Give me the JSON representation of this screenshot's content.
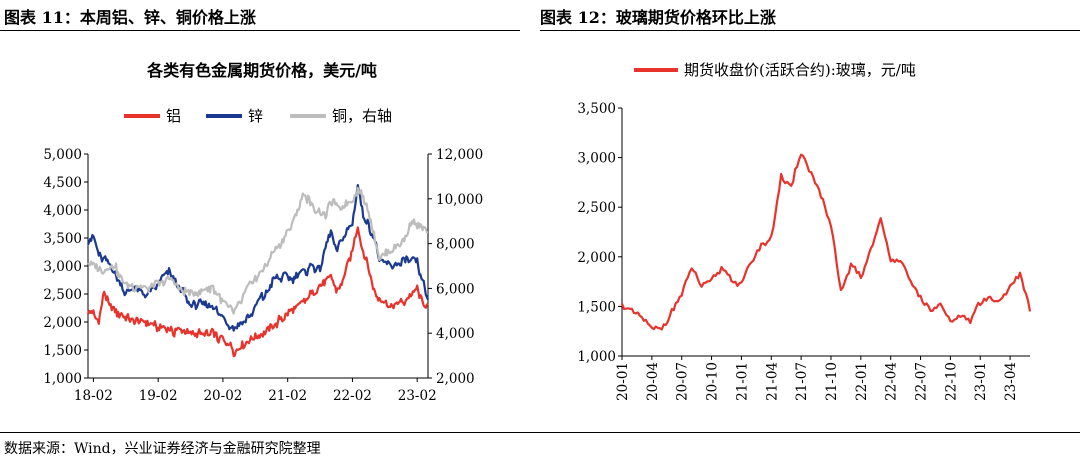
{
  "left_panel": {
    "title": "图表 11：本周铝、锌、铜价格上涨"
  },
  "right_panel": {
    "title": "图表 12：玻璃期货价格环比上涨"
  },
  "source": "数据来源：Wind，兴业证券经济与金融研究院整理",
  "chart_data": [
    {
      "type": "line",
      "title": "各类有色金属期货价格，美元/吨",
      "x_tick_labels": [
        "18-02",
        "19-02",
        "20-02",
        "21-02",
        "22-02",
        "23-02"
      ],
      "x_range": [
        "2018-01",
        "2023-04"
      ],
      "y_left": {
        "range": [
          1000,
          5000
        ],
        "ticks": [
          "1,000",
          "1,500",
          "2,000",
          "2,500",
          "3,000",
          "3,500",
          "4,000",
          "4,500",
          "5,000"
        ]
      },
      "y_right": {
        "range": [
          2000,
          12000
        ],
        "ticks": [
          "2,000",
          "4,000",
          "6,000",
          "8,000",
          "10,000",
          "12,000"
        ]
      },
      "grid": false,
      "legend_position": "top",
      "series": [
        {
          "name": "铝",
          "axis": "left",
          "color": "#e8332d",
          "x": [
            "2018-01",
            "2018-03",
            "2018-04",
            "2018-05",
            "2018-08",
            "2018-12",
            "2019-04",
            "2019-08",
            "2019-12",
            "2020-03",
            "2020-04",
            "2020-06",
            "2020-09",
            "2020-12",
            "2021-03",
            "2021-06",
            "2021-08",
            "2021-10",
            "2021-11",
            "2021-12",
            "2022-02",
            "2022-03",
            "2022-04",
            "2022-06",
            "2022-07",
            "2022-09",
            "2022-12",
            "2023-02",
            "2023-03",
            "2023-04"
          ],
          "values": [
            2200,
            2050,
            2600,
            2250,
            2100,
            1950,
            1850,
            1800,
            1800,
            1600,
            1480,
            1600,
            1750,
            2000,
            2200,
            2450,
            2650,
            2850,
            2600,
            2700,
            3300,
            3700,
            3250,
            2600,
            2400,
            2250,
            2400,
            2600,
            2350,
            2300
          ]
        },
        {
          "name": "锌",
          "axis": "left",
          "color": "#1b3a8f",
          "x": [
            "2018-01",
            "2018-02",
            "2018-03",
            "2018-05",
            "2018-08",
            "2018-10",
            "2018-12",
            "2019-04",
            "2019-08",
            "2019-12",
            "2020-03",
            "2020-04",
            "2020-06",
            "2020-09",
            "2020-12",
            "2021-03",
            "2021-06",
            "2021-08",
            "2021-10",
            "2021-11",
            "2021-12",
            "2022-02",
            "2022-03",
            "2022-04",
            "2022-06",
            "2022-07",
            "2022-09",
            "2022-12",
            "2023-02",
            "2023-03",
            "2023-04"
          ],
          "values": [
            3400,
            3550,
            3200,
            3050,
            2500,
            2600,
            2500,
            2900,
            2300,
            2300,
            1950,
            1850,
            2000,
            2400,
            2800,
            2800,
            2950,
            3000,
            3600,
            3250,
            3500,
            3750,
            4450,
            3900,
            3500,
            3100,
            3000,
            3100,
            3050,
            2700,
            2400
          ]
        },
        {
          "name": "铜，右轴",
          "axis": "right",
          "color": "#bdbdbd",
          "x": [
            "2018-01",
            "2018-03",
            "2018-06",
            "2018-08",
            "2018-12",
            "2019-04",
            "2019-08",
            "2019-12",
            "2020-03",
            "2020-04",
            "2020-06",
            "2020-09",
            "2020-12",
            "2021-03",
            "2021-05",
            "2021-07",
            "2021-09",
            "2021-10",
            "2021-12",
            "2022-02",
            "2022-03",
            "2022-05",
            "2022-07",
            "2022-09",
            "2022-12",
            "2023-01",
            "2023-02",
            "2023-03",
            "2023-04"
          ],
          "values": [
            7100,
            6800,
            7000,
            6100,
            6000,
            6400,
            5700,
            6000,
            5200,
            4800,
            5800,
            6700,
            7800,
            8900,
            10300,
            9400,
            9300,
            9800,
            9600,
            10000,
            10500,
            9400,
            7400,
            7600,
            8400,
            9200,
            8900,
            8800,
            8500
          ]
        }
      ]
    },
    {
      "type": "line",
      "title": "",
      "x_tick_labels": [
        "20-01",
        "20-04",
        "20-07",
        "20-10",
        "21-01",
        "21-04",
        "21-07",
        "21-10",
        "22-01",
        "22-04",
        "22-07",
        "22-10",
        "23-01",
        "23-04"
      ],
      "x_range": [
        "2020-01",
        "2023-06"
      ],
      "y_left": {
        "range": [
          1000,
          3500
        ],
        "ticks": [
          "1,000",
          "1,500",
          "2,000",
          "2,500",
          "3,000",
          "3,500"
        ]
      },
      "grid": false,
      "legend_position": "top",
      "series": [
        {
          "name": "期货收盘价(活跃合约):玻璃，元/吨",
          "axis": "left",
          "color": "#e8332d",
          "x": [
            "2020-01",
            "2020-02",
            "2020-03",
            "2020-04",
            "2020-05",
            "2020-06",
            "2020-07",
            "2020-08",
            "2020-09",
            "2020-10",
            "2020-11",
            "2020-12",
            "2021-01",
            "2021-02",
            "2021-03",
            "2021-04",
            "2021-05",
            "2021-06",
            "2021-07",
            "2021-08",
            "2021-09",
            "2021-10",
            "2021-11",
            "2021-12",
            "2022-01",
            "2022-02",
            "2022-03",
            "2022-04",
            "2022-05",
            "2022-06",
            "2022-07",
            "2022-08",
            "2022-09",
            "2022-10",
            "2022-11",
            "2022-12",
            "2023-01",
            "2023-02",
            "2023-03",
            "2023-04",
            "2023-05",
            "2023-06"
          ],
          "values": [
            1500,
            1450,
            1400,
            1260,
            1300,
            1450,
            1600,
            1900,
            1700,
            1750,
            1900,
            1800,
            1700,
            1950,
            2100,
            2200,
            2800,
            2700,
            3050,
            2850,
            2600,
            2300,
            1650,
            1900,
            1800,
            2100,
            2350,
            2000,
            1950,
            1750,
            1600,
            1450,
            1500,
            1350,
            1400,
            1350,
            1550,
            1600,
            1550,
            1700,
            1850,
            1450
          ]
        }
      ]
    }
  ]
}
